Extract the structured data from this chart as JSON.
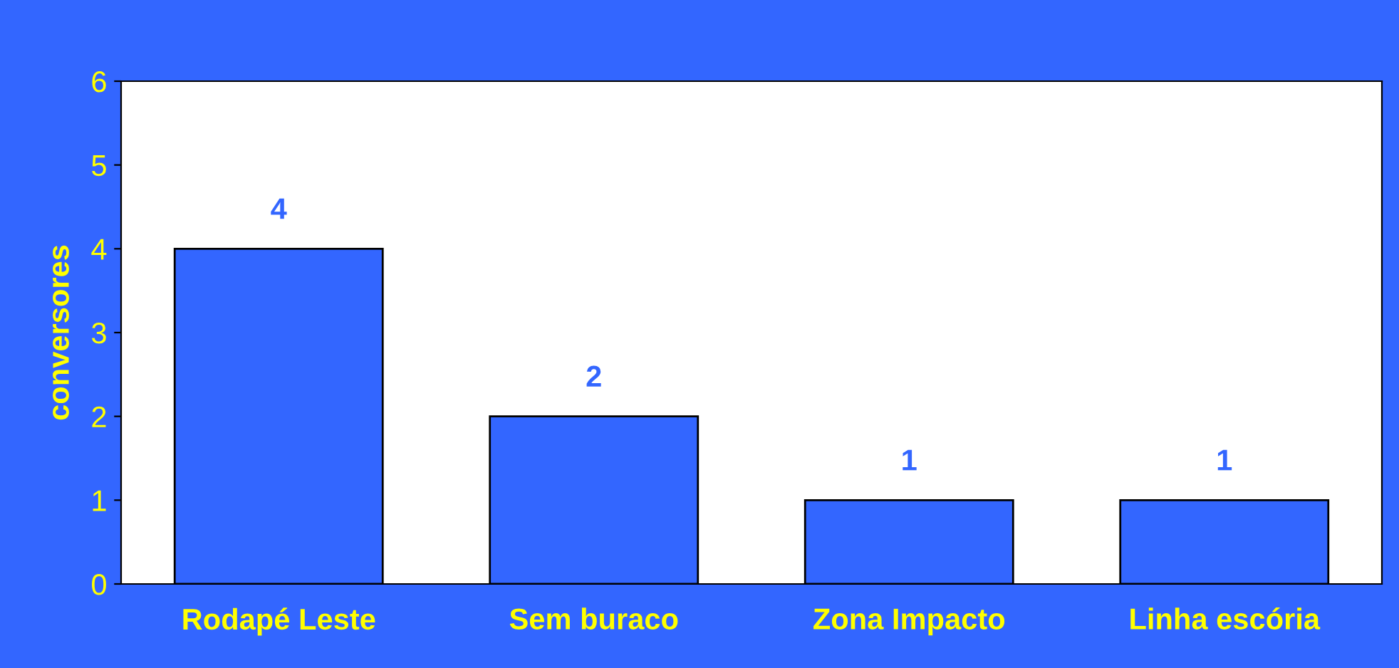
{
  "chart_data": {
    "type": "bar",
    "ylabel": "conversores",
    "categories": [
      "Rodapé Leste",
      "Sem buraco",
      "Zona Impacto",
      "Linha escória"
    ],
    "values": [
      4,
      2,
      1,
      1
    ],
    "color": "#3366ff",
    "ylim": [
      0,
      6
    ],
    "yticks": [
      0,
      1,
      2,
      3,
      4,
      5,
      6
    ],
    "grid": false,
    "data_labels": true
  }
}
